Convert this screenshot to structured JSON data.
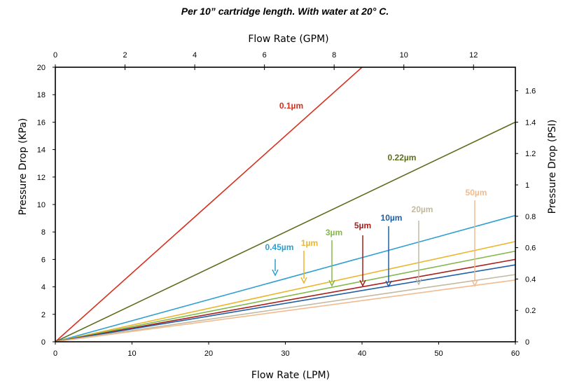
{
  "chart_data": {
    "type": "line",
    "title": "Per 10” cartridge length. With water at 20° C.",
    "xlabel": "Flow Rate (LPM)",
    "x2label": "Flow Rate (GPM)",
    "ylabel": "Pressure Drop (KPa)",
    "y2label": "Pressure Drop (PSI)",
    "xlim": [
      0,
      60
    ],
    "ylim": [
      0,
      20
    ],
    "x2lim": [
      0,
      13.2
    ],
    "y2lim": [
      0,
      1.75
    ],
    "xticks": [
      "0",
      "10",
      "20",
      "30",
      "40",
      "50",
      "60"
    ],
    "yticks": [
      "0",
      "2",
      "4",
      "6",
      "8",
      "10",
      "12",
      "14",
      "16",
      "18",
      "20"
    ],
    "x2ticks": [
      "0",
      "2",
      "4",
      "6",
      "8",
      "10",
      "12"
    ],
    "y2ticks": [
      "0",
      "0.2",
      "0.4",
      "0.6",
      "0.8",
      "1",
      "1.2",
      "1.4",
      "1.6"
    ],
    "grid": false,
    "series": [
      {
        "name": "0.1µm",
        "color": "#d7301f",
        "x": [
          0,
          40
        ],
        "y": [
          0,
          20
        ]
      },
      {
        "name": "0.22µm",
        "color": "#5c6e1e",
        "x": [
          0,
          60
        ],
        "y": [
          0,
          16
        ]
      },
      {
        "name": "0.45µm",
        "color": "#2e9fd0",
        "x": [
          0,
          60
        ],
        "y": [
          0,
          9.2
        ]
      },
      {
        "name": "1µm",
        "color": "#eab62c",
        "x": [
          0,
          60
        ],
        "y": [
          0,
          7.3
        ]
      },
      {
        "name": "3µm",
        "color": "#82b94a",
        "x": [
          0,
          60
        ],
        "y": [
          0,
          6.6
        ]
      },
      {
        "name": "5µm",
        "color": "#a61f1a",
        "x": [
          0,
          60
        ],
        "y": [
          0,
          6.0
        ]
      },
      {
        "name": "10µm",
        "color": "#1f5fa6",
        "x": [
          0,
          60
        ],
        "y": [
          0,
          5.6
        ]
      },
      {
        "name": "20µm",
        "color": "#c3b9a0",
        "x": [
          0,
          60
        ],
        "y": [
          0,
          4.9
        ]
      },
      {
        "name": "50µm",
        "color": "#f2bb8e",
        "x": [
          0,
          60
        ],
        "y": [
          0,
          4.5
        ]
      }
    ]
  }
}
